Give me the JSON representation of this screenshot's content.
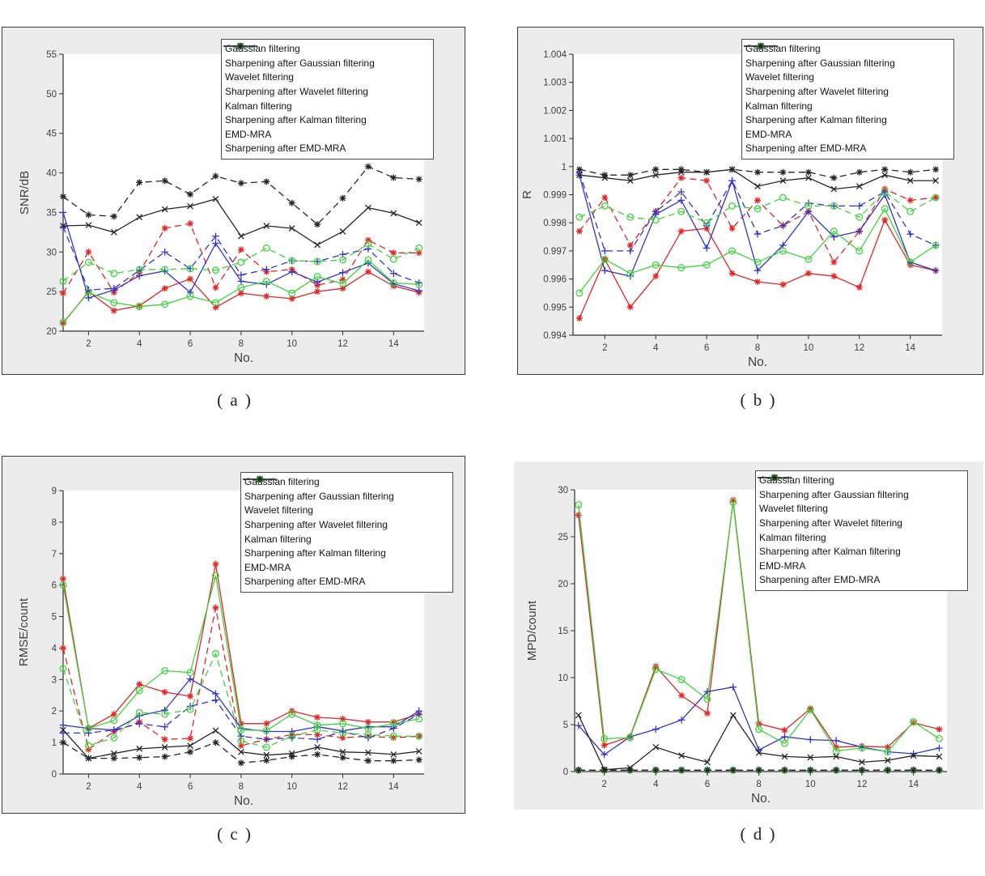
{
  "figure": {
    "background": "#ffffff",
    "panel_background": "#ececec",
    "axis_color": "#2f2f2f",
    "tick_label_color": "#3f3f3f"
  },
  "series_meta": [
    {
      "id": "gaussian",
      "label": "Gaussian filtering",
      "color": "#e02626",
      "dash": false,
      "marker": "asterisk"
    },
    {
      "id": "gaussian-sharp",
      "label": "Sharpening after Gaussian filtering",
      "color": "#e02626",
      "dash": true,
      "marker": "asterisk"
    },
    {
      "id": "wavelet",
      "label": "Wavelet filtering",
      "color": "#3434c4",
      "dash": false,
      "marker": "plus"
    },
    {
      "id": "wavelet-sharp",
      "label": "Sharpening after Wavelet filtering",
      "color": "#3434c4",
      "dash": true,
      "marker": "plus"
    },
    {
      "id": "kalman",
      "label": "Kalman filtering",
      "color": "#3fd43f",
      "dash": false,
      "marker": "circle"
    },
    {
      "id": "kalman-sharp",
      "label": "Sharpening after Kalman filtering",
      "color": "#3fd43f",
      "dash": true,
      "marker": "circle"
    },
    {
      "id": "emd-mra",
      "label": "EMD-MRA",
      "color": "#252525",
      "dash": false,
      "marker": "x"
    },
    {
      "id": "emd-mra-sharp",
      "label": "Sharpening after EMD-MRA",
      "color": "#252525",
      "dash": true,
      "marker": "asterisk"
    }
  ],
  "chart_data": [
    {
      "id": "a",
      "type": "line",
      "caption": "( a )",
      "xlabel": "No.",
      "ylabel": "SNR/dB",
      "xlim": [
        1,
        15.2
      ],
      "ylim": [
        20,
        55
      ],
      "xticks": [
        2,
        4,
        6,
        8,
        10,
        12,
        14
      ],
      "yticks": [
        20,
        25,
        30,
        35,
        40,
        45,
        50,
        55
      ],
      "ytick_labels": [
        "20",
        "25",
        "30",
        "35",
        "40",
        "45",
        "50",
        "55"
      ],
      "grid": false,
      "legend_position": "top-right",
      "x": [
        1,
        2,
        3,
        4,
        5,
        6,
        7,
        8,
        9,
        10,
        11,
        12,
        13,
        14,
        15
      ],
      "series": [
        {
          "name": "Gaussian filtering",
          "values": [
            21.0,
            25.0,
            22.6,
            23.2,
            25.4,
            26.6,
            23.0,
            24.8,
            24.4,
            24.1,
            25.0,
            25.4,
            27.5,
            25.7,
            24.9
          ]
        },
        {
          "name": "Sharpening after Gaussian filtering",
          "values": [
            24.8,
            30.0,
            24.9,
            27.4,
            33.0,
            33.6,
            25.5,
            30.3,
            27.5,
            27.8,
            25.8,
            26.5,
            31.5,
            29.9,
            29.9
          ]
        },
        {
          "name": "Wavelet filtering",
          "values": [
            35.0,
            24.2,
            25.2,
            27.0,
            27.6,
            24.9,
            31.1,
            26.3,
            25.9,
            27.5,
            26.2,
            27.4,
            28.6,
            26.0,
            25.1
          ]
        },
        {
          "name": "Sharpening after Wavelet filtering",
          "values": [
            33.2,
            25.2,
            25.4,
            27.7,
            30.0,
            27.9,
            32.0,
            27.1,
            27.8,
            28.9,
            28.8,
            29.7,
            30.4,
            27.3,
            26.1
          ]
        },
        {
          "name": "Kalman filtering",
          "values": [
            21.1,
            24.9,
            23.6,
            23.1,
            23.4,
            24.4,
            23.6,
            25.5,
            26.3,
            24.8,
            26.9,
            26.0,
            29.0,
            26.1,
            25.9
          ]
        },
        {
          "name": "Sharpening after Kalman filtering",
          "values": [
            26.3,
            28.7,
            27.3,
            27.8,
            27.8,
            27.9,
            27.7,
            28.7,
            30.5,
            28.9,
            28.8,
            29.0,
            31.0,
            29.1,
            30.5
          ]
        },
        {
          "name": "EMD-MRA",
          "values": [
            33.3,
            33.4,
            32.5,
            34.4,
            35.4,
            35.8,
            36.7,
            32.0,
            33.3,
            33.0,
            30.9,
            32.6,
            35.6,
            34.9,
            33.7
          ]
        },
        {
          "name": "Sharpening after EMD-MRA",
          "values": [
            37.0,
            34.7,
            34.5,
            38.8,
            39.0,
            37.3,
            39.6,
            38.7,
            38.9,
            36.2,
            33.5,
            36.8,
            40.8,
            39.4,
            39.2
          ]
        }
      ]
    },
    {
      "id": "b",
      "type": "line",
      "caption": "( b )",
      "xlabel": "No.",
      "ylabel": "R",
      "xlim": [
        0.75,
        15.25
      ],
      "ylim": [
        0.994,
        1.004
      ],
      "xticks": [
        2,
        4,
        6,
        8,
        10,
        12,
        14
      ],
      "yticks": [
        0.994,
        0.995,
        0.996,
        0.997,
        0.998,
        0.999,
        1,
        1.001,
        1.002,
        1.003,
        1.004
      ],
      "ytick_labels": [
        "0.994",
        "0.995",
        "0.996",
        "0.997",
        "0.998",
        "0.999",
        "1",
        "1.001",
        "1.002",
        "1.003",
        "1.004"
      ],
      "grid": false,
      "legend_position": "top-right",
      "x": [
        1,
        2,
        3,
        4,
        5,
        6,
        7,
        8,
        9,
        10,
        11,
        12,
        13,
        14,
        15
      ],
      "series": [
        {
          "name": "Gaussian filtering",
          "values": [
            0.9946,
            0.9967,
            0.995,
            0.9961,
            0.9977,
            0.9978,
            0.9962,
            0.9959,
            0.9958,
            0.9962,
            0.9961,
            0.9957,
            0.9981,
            0.9965,
            0.9963
          ]
        },
        {
          "name": "Sharpening after Gaussian filtering",
          "values": [
            0.9977,
            0.9989,
            0.9972,
            0.9984,
            0.9996,
            0.9995,
            0.9978,
            0.9988,
            0.9979,
            0.9984,
            0.9966,
            0.9977,
            0.9992,
            0.9988,
            0.9989
          ]
        },
        {
          "name": "Wavelet filtering",
          "values": [
            0.9997,
            0.9963,
            0.9961,
            0.9983,
            0.9988,
            0.9971,
            0.9995,
            0.9963,
            0.9972,
            0.9984,
            0.9975,
            0.9977,
            0.999,
            0.9966,
            0.9963
          ]
        },
        {
          "name": "Sharpening after Wavelet filtering",
          "values": [
            0.9998,
            0.997,
            0.997,
            0.9984,
            0.9991,
            0.9979,
            0.9995,
            0.9976,
            0.9979,
            0.9987,
            0.9986,
            0.9986,
            0.9991,
            0.9976,
            0.9972
          ]
        },
        {
          "name": "Kalman filtering",
          "values": [
            0.9955,
            0.9967,
            0.9962,
            0.9965,
            0.9964,
            0.9965,
            0.997,
            0.9966,
            0.997,
            0.9967,
            0.9977,
            0.997,
            0.9985,
            0.9966,
            0.9972
          ]
        },
        {
          "name": "Sharpening after Kalman filtering",
          "values": [
            0.9982,
            0.9986,
            0.9982,
            0.9981,
            0.9984,
            0.998,
            0.9986,
            0.9985,
            0.9989,
            0.9986,
            0.9986,
            0.9982,
            0.9991,
            0.9984,
            0.9989
          ]
        },
        {
          "name": "EMD-MRA",
          "values": [
            0.9997,
            0.9996,
            0.9995,
            0.9997,
            0.9998,
            0.9998,
            0.9999,
            0.9993,
            0.9995,
            0.9996,
            0.9992,
            0.9993,
            0.9997,
            0.9995,
            0.9995
          ]
        },
        {
          "name": "Sharpening after EMD-MRA",
          "values": [
            0.9999,
            0.9997,
            0.9997,
            0.9999,
            0.9999,
            0.9998,
            0.9999,
            0.9998,
            0.9998,
            0.9998,
            0.9996,
            0.9998,
            0.9999,
            0.9998,
            0.9999
          ]
        }
      ]
    },
    {
      "id": "c",
      "type": "line",
      "caption": "( c )",
      "xlabel": "No.",
      "ylabel": "RMSE/count",
      "xlim": [
        1,
        15.2
      ],
      "ylim": [
        0,
        9
      ],
      "xticks": [
        2,
        4,
        6,
        8,
        10,
        12,
        14
      ],
      "yticks": [
        0,
        1,
        2,
        3,
        4,
        5,
        6,
        7,
        8,
        9
      ],
      "ytick_labels": [
        "0",
        "1",
        "2",
        "3",
        "4",
        "5",
        "6",
        "7",
        "8",
        "9"
      ],
      "grid": false,
      "legend_position": "top-right",
      "x": [
        1,
        2,
        3,
        4,
        5,
        6,
        7,
        8,
        9,
        10,
        11,
        12,
        13,
        14,
        15
      ],
      "series": [
        {
          "name": "Gaussian filtering",
          "values": [
            6.2,
            1.45,
            1.9,
            2.85,
            2.6,
            2.47,
            6.67,
            1.6,
            1.6,
            2.0,
            1.8,
            1.75,
            1.65,
            1.65,
            1.9
          ]
        },
        {
          "name": "Sharpening after Gaussian filtering",
          "values": [
            4.0,
            0.78,
            1.35,
            1.65,
            1.1,
            1.13,
            5.28,
            0.9,
            1.1,
            1.25,
            1.25,
            1.15,
            1.2,
            1.15,
            1.2
          ]
        },
        {
          "name": "Wavelet filtering",
          "values": [
            1.55,
            1.45,
            1.4,
            1.85,
            2.03,
            3.02,
            2.55,
            1.45,
            1.35,
            1.35,
            1.5,
            1.37,
            1.5,
            1.5,
            2.0
          ]
        },
        {
          "name": "Sharpening after Wavelet filtering",
          "values": [
            1.3,
            1.3,
            1.4,
            1.6,
            1.5,
            2.15,
            2.35,
            1.2,
            1.1,
            1.15,
            1.1,
            1.35,
            1.15,
            1.45,
            1.9
          ]
        },
        {
          "name": "Kalman filtering",
          "values": [
            6.0,
            1.45,
            1.7,
            2.65,
            3.28,
            3.22,
            6.3,
            1.4,
            1.38,
            1.9,
            1.55,
            1.6,
            1.45,
            1.6,
            1.75
          ]
        },
        {
          "name": "Sharpening after Kalman filtering",
          "values": [
            3.35,
            0.9,
            1.15,
            1.95,
            1.9,
            2.05,
            3.82,
            1.05,
            0.85,
            1.2,
            1.4,
            1.3,
            1.25,
            1.2,
            1.2
          ]
        },
        {
          "name": "EMD-MRA",
          "values": [
            1.4,
            0.5,
            0.65,
            0.8,
            0.85,
            0.9,
            1.38,
            0.7,
            0.6,
            0.65,
            0.85,
            0.7,
            0.68,
            0.62,
            0.72
          ]
        },
        {
          "name": "Sharpening after EMD-MRA",
          "values": [
            1.0,
            0.5,
            0.5,
            0.52,
            0.55,
            0.7,
            1.0,
            0.35,
            0.43,
            0.55,
            0.62,
            0.52,
            0.42,
            0.42,
            0.45
          ]
        }
      ]
    },
    {
      "id": "d",
      "type": "line",
      "caption": "( d )",
      "xlabel": "No.",
      "ylabel": "MPD/count",
      "xlim": [
        0.85,
        15.3
      ],
      "ylim": [
        0,
        30
      ],
      "xticks": [
        2,
        4,
        6,
        8,
        10,
        12,
        14
      ],
      "yticks": [
        0,
        5,
        10,
        15,
        20,
        25,
        30
      ],
      "ytick_labels": [
        "0",
        "5",
        "10",
        "15",
        "20",
        "25",
        "30"
      ],
      "grid": false,
      "legend_position": "top-right",
      "x": [
        1,
        2,
        3,
        4,
        5,
        6,
        7,
        8,
        9,
        10,
        11,
        12,
        13,
        14,
        15
      ],
      "series": [
        {
          "name": "Gaussian filtering",
          "values": [
            27.3,
            2.8,
            3.7,
            11.2,
            8.1,
            6.2,
            28.9,
            5.1,
            4.4,
            6.7,
            2.6,
            2.7,
            2.6,
            5.2,
            4.5
          ]
        },
        {
          "name": "Sharpening after Gaussian filtering",
          "values": [
            0.15,
            0.15,
            0.15,
            0.15,
            0.15,
            0.15,
            0.15,
            0.15,
            0.15,
            0.15,
            0.15,
            0.15,
            0.15,
            0.15,
            0.15
          ]
        },
        {
          "name": "Wavelet filtering",
          "values": [
            4.9,
            1.8,
            3.7,
            4.5,
            5.5,
            8.5,
            9.0,
            2.3,
            3.7,
            3.4,
            3.3,
            2.6,
            2.1,
            1.9,
            2.5
          ]
        },
        {
          "name": "Sharpening after Wavelet filtering",
          "values": [
            0.15,
            0.15,
            0.15,
            0.15,
            0.15,
            0.15,
            0.15,
            0.15,
            0.15,
            0.15,
            0.15,
            0.15,
            0.15,
            0.15,
            0.15
          ]
        },
        {
          "name": "Kalman filtering",
          "values": [
            28.4,
            3.5,
            3.6,
            10.9,
            9.8,
            7.7,
            28.7,
            4.5,
            3.0,
            6.6,
            2.2,
            2.5,
            2.1,
            5.3,
            3.5
          ]
        },
        {
          "name": "Sharpening after Kalman filtering",
          "values": [
            0.15,
            0.15,
            0.15,
            0.15,
            0.15,
            0.15,
            0.15,
            0.15,
            0.15,
            0.15,
            0.15,
            0.15,
            0.15,
            0.15,
            0.15
          ]
        },
        {
          "name": "EMD-MRA",
          "values": [
            6.0,
            0.2,
            0.4,
            2.6,
            1.7,
            1.0,
            6.0,
            2.0,
            1.6,
            1.5,
            1.6,
            1.0,
            1.2,
            1.7,
            1.6
          ]
        },
        {
          "name": "Sharpening after EMD-MRA",
          "values": [
            0.15,
            0.15,
            0.15,
            0.15,
            0.15,
            0.15,
            0.15,
            0.15,
            0.15,
            0.15,
            0.15,
            0.15,
            0.15,
            0.15,
            0.15
          ]
        }
      ]
    }
  ]
}
